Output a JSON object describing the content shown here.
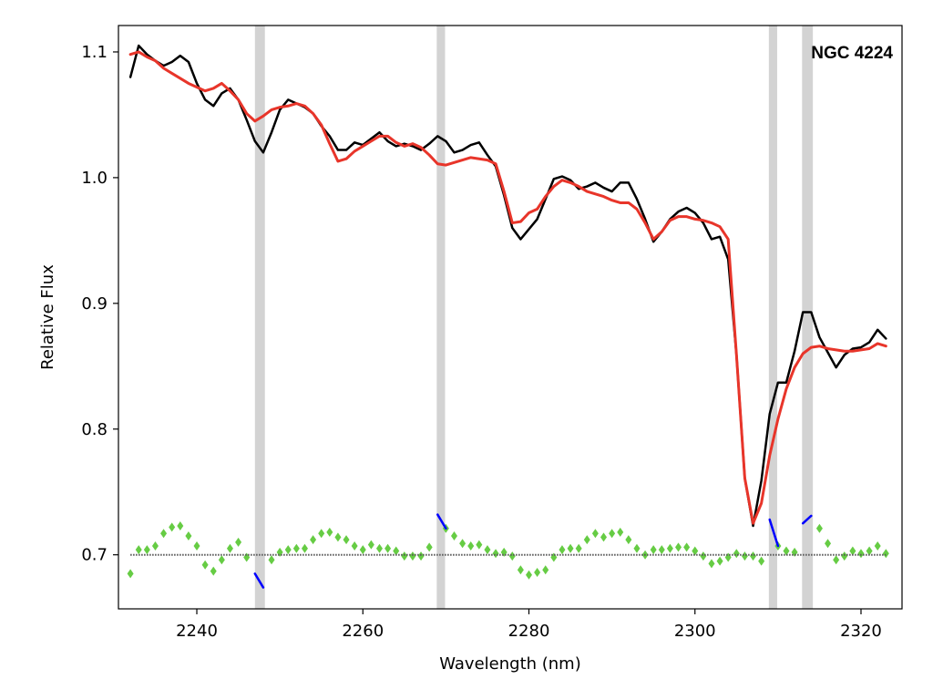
{
  "chart_data": {
    "type": "line",
    "annotation": "NGC 4224",
    "xlabel": "Wavelength (nm)",
    "ylabel": "Relative Flux",
    "xlim": [
      2230.56,
      2324.94
    ],
    "ylim": [
      0.657,
      1.121
    ],
    "xticks": [
      2240,
      2260,
      2280,
      2300,
      2320
    ],
    "yticks": [
      0.7,
      0.8,
      0.9,
      {
        "value": 1,
        "label": "1.0"
      },
      1.1
    ],
    "bands": [
      [
        2247.0,
        2248.2
      ],
      [
        2268.9,
        2269.9
      ],
      [
        2308.9,
        2309.9
      ],
      [
        2312.9,
        2314.2
      ]
    ],
    "band_color": "#d3d3d3",
    "hline": 0.7,
    "hline_color": "#555555",
    "x": [
      2232,
      2233,
      2234,
      2235,
      2236,
      2237,
      2238,
      2239,
      2240,
      2241,
      2242,
      2243,
      2244,
      2245,
      2246,
      2247,
      2248,
      2249,
      2250,
      2251,
      2252,
      2253,
      2254,
      2255,
      2256,
      2257,
      2258,
      2259,
      2260,
      2261,
      2262,
      2263,
      2264,
      2265,
      2266,
      2267,
      2268,
      2269,
      2270,
      2271,
      2272,
      2273,
      2274,
      2275,
      2276,
      2277,
      2278,
      2279,
      2280,
      2281,
      2282,
      2283,
      2284,
      2285,
      2286,
      2287,
      2288,
      2289,
      2290,
      2291,
      2292,
      2293,
      2294,
      2295,
      2296,
      2297,
      2298,
      2299,
      2300,
      2301,
      2302,
      2303,
      2304,
      2305,
      2306,
      2307,
      2308,
      2309,
      2310,
      2311,
      2312,
      2313,
      2314,
      2315,
      2316,
      2317,
      2318,
      2319,
      2320,
      2321,
      2322,
      2323
    ],
    "series": [
      {
        "color": "#000000",
        "style": "line",
        "width": 2.5,
        "values": [
          1.08,
          1.105,
          1.098,
          1.093,
          1.089,
          1.092,
          1.097,
          1.092,
          1.075,
          1.062,
          1.057,
          1.067,
          1.071,
          1.062,
          1.046,
          1.029,
          1.02,
          1.036,
          1.054,
          1.062,
          1.059,
          1.056,
          1.051,
          1.041,
          1.033,
          1.022,
          1.022,
          1.028,
          1.026,
          1.031,
          1.036,
          1.029,
          1.025,
          1.027,
          1.025,
          1.022,
          1.027,
          1.033,
          1.029,
          1.02,
          1.022,
          1.026,
          1.028,
          1.018,
          1.009,
          0.986,
          0.96,
          0.951,
          0.959,
          0.967,
          0.983,
          0.999,
          1.001,
          0.998,
          0.991,
          0.993,
          0.996,
          0.992,
          0.989,
          0.996,
          0.996,
          0.983,
          0.967,
          0.949,
          0.957,
          0.967,
          0.973,
          0.976,
          0.972,
          0.964,
          0.951,
          0.953,
          0.935,
          0.859,
          0.761,
          0.723,
          0.759,
          0.812,
          0.837,
          0.837,
          0.862,
          0.893,
          0.893,
          0.873,
          0.861,
          0.849,
          0.859,
          0.864,
          0.865,
          0.869,
          0.879,
          0.872
        ]
      },
      {
        "color": "#e8352a",
        "style": "line",
        "width": 3,
        "values": [
          1.098,
          1.1,
          1.096,
          1.093,
          1.087,
          1.083,
          1.079,
          1.075,
          1.072,
          1.069,
          1.071,
          1.075,
          1.069,
          1.062,
          1.051,
          1.045,
          1.049,
          1.054,
          1.056,
          1.057,
          1.059,
          1.057,
          1.051,
          1.042,
          1.027,
          1.013,
          1.015,
          1.021,
          1.025,
          1.029,
          1.033,
          1.033,
          1.028,
          1.025,
          1.027,
          1.024,
          1.018,
          1.011,
          1.01,
          1.012,
          1.014,
          1.016,
          1.015,
          1.014,
          1.011,
          0.989,
          0.964,
          0.965,
          0.972,
          0.975,
          0.985,
          0.993,
          0.998,
          0.996,
          0.993,
          0.989,
          0.987,
          0.985,
          0.982,
          0.98,
          0.98,
          0.975,
          0.964,
          0.951,
          0.957,
          0.966,
          0.969,
          0.969,
          0.967,
          0.966,
          0.964,
          0.961,
          0.951,
          0.859,
          0.761,
          0.725,
          0.741,
          0.779,
          0.808,
          0.832,
          0.849,
          0.86,
          0.865,
          0.866,
          0.864,
          0.863,
          0.862,
          0.862,
          0.863,
          0.864,
          0.868,
          0.866
        ]
      },
      {
        "color": "#66cc44",
        "style": "diamond",
        "values": [
          0.685,
          0.704,
          0.704,
          0.707,
          0.717,
          0.722,
          0.723,
          0.715,
          0.707,
          0.692,
          0.687,
          0.696,
          0.705,
          0.71,
          0.698,
          null,
          null,
          0.696,
          0.702,
          0.704,
          0.705,
          0.705,
          0.712,
          0.717,
          0.718,
          0.714,
          0.712,
          0.707,
          0.704,
          0.708,
          0.705,
          0.705,
          0.703,
          0.699,
          0.699,
          0.699,
          0.706,
          null,
          0.721,
          0.715,
          0.709,
          0.707,
          0.708,
          0.704,
          0.701,
          0.702,
          0.699,
          0.688,
          0.684,
          0.686,
          0.688,
          0.698,
          0.704,
          0.705,
          0.705,
          0.712,
          0.717,
          0.714,
          0.717,
          0.718,
          0.712,
          0.705,
          0.7,
          0.704,
          0.704,
          0.705,
          0.706,
          0.706,
          0.703,
          0.699,
          0.693,
          0.695,
          0.698,
          0.701,
          0.699,
          0.699,
          0.695,
          null,
          0.707,
          0.703,
          0.702,
          null,
          null,
          0.721,
          0.709,
          0.696,
          0.699,
          0.703,
          0.701,
          0.703,
          0.707,
          0.701
        ]
      },
      {
        "color": "#0000ff",
        "style": "line",
        "width": 2.5,
        "values": [
          null,
          null,
          null,
          null,
          null,
          null,
          null,
          null,
          null,
          null,
          null,
          null,
          null,
          null,
          null,
          0.685,
          0.674,
          null,
          null,
          null,
          null,
          null,
          null,
          null,
          null,
          null,
          null,
          null,
          null,
          null,
          null,
          null,
          null,
          null,
          null,
          null,
          null,
          0.732,
          0.721,
          null,
          null,
          null,
          null,
          null,
          null,
          null,
          null,
          null,
          null,
          null,
          null,
          null,
          null,
          null,
          null,
          null,
          null,
          null,
          null,
          null,
          null,
          null,
          null,
          null,
          null,
          null,
          null,
          null,
          null,
          null,
          null,
          null,
          null,
          null,
          null,
          null,
          null,
          0.728,
          0.707,
          null,
          null,
          0.725,
          0.731,
          null,
          null,
          null,
          null,
          null,
          null,
          null,
          null,
          null
        ]
      }
    ]
  }
}
